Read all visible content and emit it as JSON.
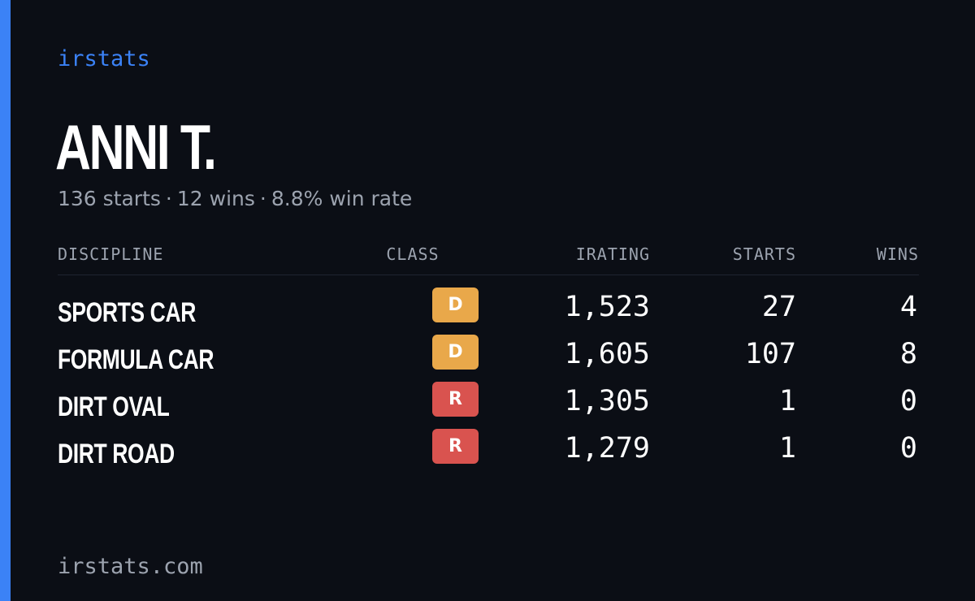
{
  "brand": "irstats",
  "driver": {
    "name": "ANNI T.",
    "summary": {
      "starts": "136 starts",
      "wins": "12 wins",
      "win_rate": "8.8% win rate",
      "separator": "·"
    }
  },
  "table": {
    "headers": {
      "discipline": "DISCIPLINE",
      "class": "CLASS",
      "irating": "IRATING",
      "starts": "STARTS",
      "wins": "WINS"
    },
    "rows": [
      {
        "discipline": "SPORTS CAR",
        "class": "D",
        "class_color": "#e9a84a",
        "irating": "1,523",
        "starts": "27",
        "wins": "4"
      },
      {
        "discipline": "FORMULA CAR",
        "class": "D",
        "class_color": "#e9a84a",
        "irating": "1,605",
        "starts": "107",
        "wins": "8"
      },
      {
        "discipline": "DIRT OVAL",
        "class": "R",
        "class_color": "#d9534f",
        "irating": "1,305",
        "starts": "1",
        "wins": "0"
      },
      {
        "discipline": "DIRT ROAD",
        "class": "R",
        "class_color": "#d9534f",
        "irating": "1,279",
        "starts": "1",
        "wins": "0"
      }
    ]
  },
  "footer": {
    "domain": "irstats.com"
  },
  "colors": {
    "background": "#0b0e15",
    "accent": "#3b82f6",
    "muted_text": "#9ca3af",
    "class_d": "#e9a84a",
    "class_r": "#d9534f"
  }
}
